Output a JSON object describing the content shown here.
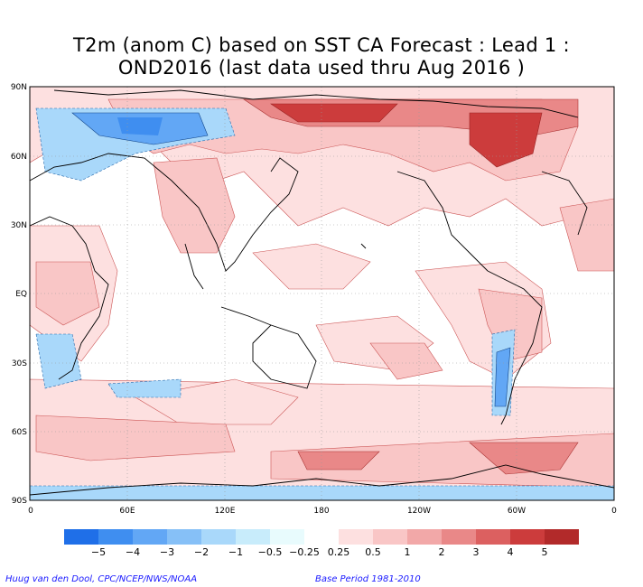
{
  "title": {
    "line1": "T2m (anom C) based on SST CA Forecast : Lead 1 :",
    "line2": "OND2016 (last data used thru Aug 2016 )"
  },
  "axes": {
    "y_labels": [
      "90N",
      "60N",
      "30N",
      "EQ",
      "30S",
      "60S",
      "90S"
    ],
    "x_labels": [
      "0",
      "60E",
      "120E",
      "180",
      "120W",
      "60W",
      "0"
    ]
  },
  "colorbar": {
    "labels": [
      "−5",
      "−4",
      "−3",
      "−2",
      "−1",
      "−0.5",
      "−0.25",
      "0.25",
      "0.5",
      "1",
      "2",
      "3",
      "4",
      "5"
    ],
    "colors": [
      "#1f6fe8",
      "#3f8ef0",
      "#62a7f5",
      "#86c0f7",
      "#a9d8fa",
      "#c8ecfb",
      "#e8fbfd",
      "#ffffff",
      "#fde0e0",
      "#f9c6c6",
      "#f2a8a8",
      "#e98888",
      "#dc6060",
      "#cc3c3c",
      "#b22a2a"
    ]
  },
  "credits": {
    "left": "Huug van den Dool, CPC/NCEP/NWS/NOAA",
    "right": "Base Period 1981-2010"
  }
}
